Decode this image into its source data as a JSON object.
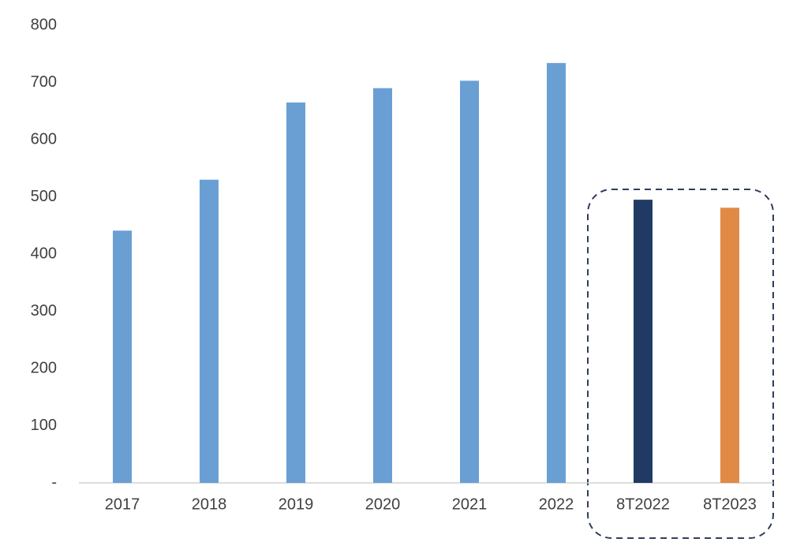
{
  "chart_data": {
    "type": "bar",
    "categories": [
      "2017",
      "2018",
      "2019",
      "2020",
      "2021",
      "2022",
      "8T2022",
      "8T2023"
    ],
    "values": [
      441,
      530,
      665,
      690,
      703,
      734,
      495,
      481
    ],
    "colors": [
      "#6a9fd4",
      "#6a9fd4",
      "#6a9fd4",
      "#6a9fd4",
      "#6a9fd4",
      "#6a9fd4",
      "#203a64",
      "#e08a45"
    ],
    "ylim": [
      0,
      800
    ],
    "yticks": [
      {
        "value": 0,
        "label": "-"
      },
      100,
      200,
      300,
      400,
      500,
      600,
      700,
      800
    ],
    "grid": false
  }
}
